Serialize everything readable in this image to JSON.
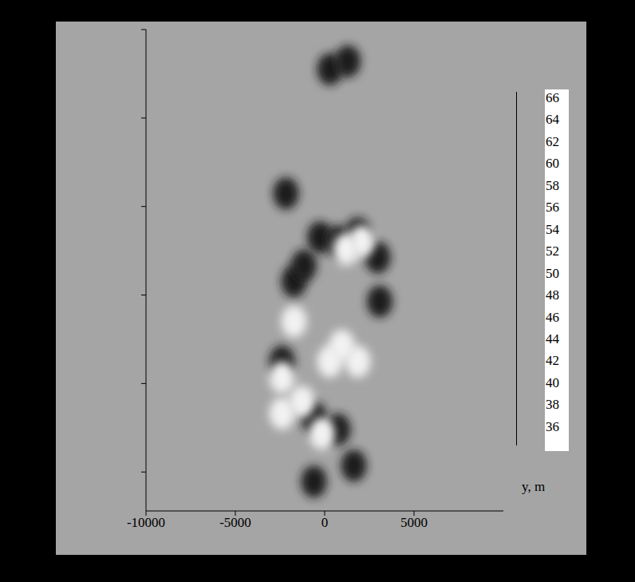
{
  "chart_data": {
    "type": "scatter",
    "x_label": "y, m",
    "xlim": [
      -10000,
      10000
    ],
    "xticks": [
      -10000,
      -5000,
      0,
      5000
    ],
    "ylim": [
      -6100,
      7500
    ],
    "yticks": [
      -5000,
      -2500,
      0,
      2500,
      5000,
      7500
    ],
    "tick_labels": "x",
    "grid": false,
    "series": [
      {
        "color": "#1a1a1a",
        "marker": "blob",
        "x": [
          290,
          1295,
          -2165,
          -268,
          737,
          1853,
          2969,
          3080,
          -1719,
          -1161,
          -2388,
          -603,
          737,
          1629,
          -603
        ],
        "y": [
          6380,
          6605,
          2873,
          1629,
          1516,
          1742,
          1063,
          -181,
          385,
          837,
          -1878,
          -3461,
          -3801,
          -4819,
          -5271
        ]
      },
      {
        "color": "#f2f2f2",
        "marker": "blob",
        "x": [
          -1719,
          290,
          1183,
          2076,
          -1272,
          -156,
          -2388,
          1853,
          960,
          -2388
        ],
        "y": [
          -747,
          -1878,
          1290,
          1516,
          -3009,
          -3914,
          -3348,
          -1878,
          -1425,
          -2330
        ]
      }
    ],
    "colorbar": {
      "range": [
        33.8,
        66.8
      ],
      "ticks": [
        66,
        64,
        62,
        60,
        58,
        56,
        54,
        52,
        50,
        48,
        46,
        44,
        42,
        40,
        38,
        36
      ]
    }
  }
}
